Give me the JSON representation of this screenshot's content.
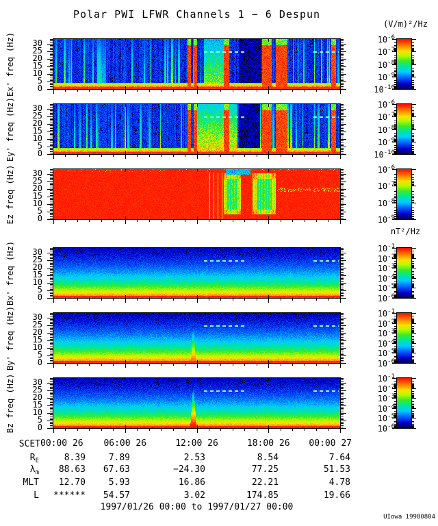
{
  "title": "Polar PWI LFWR Channels 1 − 6 Despun",
  "credit": "UIowa 19980804",
  "footer": "1997/01/26 00:00 to 1997/01/27 00:00",
  "units": {
    "electric": "(V/m)²/Hz",
    "magnetic": "nT²/Hz"
  },
  "colorbar_base": "10",
  "colors": {
    "background": "#ffffff",
    "frame": "#000000",
    "interference_line": "#80ffe1",
    "spectral_max": "#ff0f00",
    "spectral_min": "#000058"
  },
  "x_axis": {
    "label_prefix": "SCET",
    "tick_labels": [
      "00:00 26",
      "06:00 26",
      "12:00 26",
      "18:00 26",
      "00:00 27"
    ],
    "tick_hours": [
      0,
      6,
      12,
      18,
      24
    ]
  },
  "y_axis": {
    "ticks": [
      0,
      5,
      10,
      15,
      20,
      25,
      30
    ],
    "max": 33
  },
  "panels": [
    {
      "name": "ex",
      "ylabel": "Ex' freq (Hz)",
      "kind": "e",
      "seed": 11,
      "red_bands": [
        [
          0.466,
          0.478
        ],
        [
          0.488,
          0.5
        ],
        [
          0.594,
          0.612
        ],
        [
          0.726,
          0.76
        ],
        [
          0.775,
          0.815
        ],
        [
          0.968,
          0.985
        ]
      ],
      "dark_bands": [
        [
          0.645,
          0.724
        ]
      ],
      "hot_bands": [
        [
          0.525,
          0.592,
          0.35
        ]
      ],
      "dashes": [
        [
          0.525,
          0.665
        ],
        [
          0.908,
          0.995
        ]
      ],
      "colorbar": {
        "exponents": [
          -6,
          -7,
          -8,
          -9,
          -10
        ]
      }
    },
    {
      "name": "ey",
      "ylabel": "Ey' freq (Hz)",
      "kind": "e",
      "seed": 23,
      "red_bands": [
        [
          0.466,
          0.478
        ],
        [
          0.488,
          0.5
        ],
        [
          0.594,
          0.612
        ],
        [
          0.726,
          0.76
        ],
        [
          0.775,
          0.815
        ],
        [
          0.968,
          0.985
        ]
      ],
      "dark_bands": [
        [
          0.645,
          0.72
        ]
      ],
      "hot_bands": [
        [
          0.5,
          0.64,
          0.5
        ]
      ],
      "dashes": [
        [
          0.525,
          0.665
        ],
        [
          0.908,
          0.995
        ]
      ],
      "colorbar": {
        "exponents": [
          -6,
          -7,
          -8,
          -9,
          -10
        ]
      }
    },
    {
      "name": "ez",
      "ylabel": "Ez freq (Hz)",
      "kind": "ez",
      "seed": 37,
      "green_blobs": [
        [
          0.592,
          0.652
        ],
        [
          0.694,
          0.775
        ]
      ],
      "top_cool": [
        0.6,
        0.685
      ],
      "speck_line": {
        "f": 19.5,
        "x0": 0.78,
        "x1": 1.0
      },
      "dashes": [],
      "colorbar": {
        "exponents": [
          -6,
          -7,
          -8,
          -9
        ]
      }
    },
    {
      "name": "bx",
      "ylabel": "Bx' freq (Hz)",
      "kind": "b",
      "seed": 51,
      "spike": {
        "x": 0.487,
        "w": 2.5,
        "fmax": 16,
        "amp": 0.55
      },
      "dashes": [
        [
          0.525,
          0.665
        ],
        [
          0.908,
          0.995
        ]
      ],
      "colorbar": {
        "exponents": [
          -1,
          -2,
          -3,
          -4,
          -5,
          -6
        ]
      }
    },
    {
      "name": "by",
      "ylabel": "By' freq (Hz)",
      "kind": "b",
      "seed": 67,
      "spike": {
        "x": 0.487,
        "w": 3,
        "fmax": 24,
        "amp": 0.8
      },
      "dashes": [
        [
          0.525,
          0.665
        ],
        [
          0.908,
          0.995
        ]
      ],
      "colorbar": {
        "exponents": [
          -1,
          -2,
          -3,
          -4,
          -5,
          -6
        ]
      }
    },
    {
      "name": "bz",
      "ylabel": "Bz freq (Hz)",
      "kind": "b",
      "seed": 83,
      "spike": {
        "x": 0.487,
        "w": 4,
        "fmax": 27,
        "amp": 0.9
      },
      "dashes": [
        [
          0.525,
          0.665
        ],
        [
          0.908,
          0.995
        ]
      ],
      "colorbar": {
        "exponents": [
          -1,
          -2,
          -3,
          -4,
          -5,
          -6
        ]
      }
    }
  ],
  "ephemeris": {
    "rows": [
      {
        "label": "R",
        "sub": "E",
        "values": [
          "8.39",
          "7.89",
          "2.53",
          "8.54",
          "7.64"
        ]
      },
      {
        "label": "λ",
        "sub": "m",
        "values": [
          "88.63",
          "67.63",
          "−24.30",
          "77.25",
          "51.53"
        ]
      },
      {
        "label": "MLT",
        "sub": "",
        "values": [
          "12.70",
          "5.93",
          "16.86",
          "22.21",
          "4.78"
        ]
      },
      {
        "label": "L",
        "sub": "",
        "values": [
          "******",
          "54.57",
          "3.02",
          "174.85",
          "19.66"
        ]
      }
    ]
  },
  "chart_data": [
    {
      "type": "heatmap",
      "name": "Ex'",
      "ylabel": "Ex' freq (Hz)",
      "ylim": [
        0,
        33
      ],
      "yticks": [
        0,
        5,
        10,
        15,
        20,
        25,
        30
      ],
      "xticks": [
        "00:00 26",
        "06:00 26",
        "12:00 26",
        "18:00 26",
        "00:00 27"
      ],
      "x_range": "1997/01/26 00:00 to 1997/01/27 00:00",
      "colorbar": {
        "unit": "(V/m)²/Hz",
        "scale": "log",
        "min": 1e-10,
        "max": 1e-06
      },
      "summary": "Bursty broadband electric noise over dark-blue background; intense red columns ~11:00-14:00 and 17:00-19:00, quiet dark band ~15:30-17:00, dashed interference line at 25 Hz, red band below ~2 Hz."
    },
    {
      "type": "heatmap",
      "name": "Ey'",
      "ylabel": "Ey' freq (Hz)",
      "ylim": [
        0,
        33
      ],
      "yticks": [
        0,
        5,
        10,
        15,
        20,
        25,
        30
      ],
      "xticks": [
        "00:00 26",
        "06:00 26",
        "12:00 26",
        "18:00 26",
        "00:00 27"
      ],
      "x_range": "1997/01/26 00:00 to 1997/01/27 00:00",
      "colorbar": {
        "unit": "(V/m)²/Hz",
        "scale": "log",
        "min": 1e-10,
        "max": 1e-06
      },
      "summary": "Like Ex' but with stronger yellow/orange enhancement ~12:00-15:00; dashed interference line at 25 Hz."
    },
    {
      "type": "heatmap",
      "name": "Ez",
      "ylabel": "Ez freq (Hz)",
      "ylim": [
        0,
        33
      ],
      "yticks": [
        0,
        5,
        10,
        15,
        20,
        25,
        30
      ],
      "xticks": [
        "00:00 26",
        "06:00 26",
        "12:00 26",
        "18:00 26",
        "00:00 27"
      ],
      "x_range": "1997/01/26 00:00 to 1997/01/27 00:00",
      "colorbar": {
        "unit": "(V/m)²/Hz",
        "scale": "log",
        "min": 1e-09,
        "max": 1e-06
      },
      "summary": "Saturated red across nearly the full day; green/yellow striped depressions near 14:00-15:30 and 16:30-18:30, cool patch at top edge, faint speckle line near 20 Hz after 19:00."
    },
    {
      "type": "heatmap",
      "name": "Bx'",
      "ylabel": "Bx' freq (Hz)",
      "ylim": [
        0,
        33
      ],
      "yticks": [
        0,
        5,
        10,
        15,
        20,
        25,
        30
      ],
      "xticks": [
        "00:00 26",
        "06:00 26",
        "12:00 26",
        "18:00 26",
        "00:00 27"
      ],
      "x_range": "1997/01/26 00:00 to 1997/01/27 00:00",
      "colorbar": {
        "unit": "nT²/Hz",
        "scale": "log",
        "min": 1e-06,
        "max": 0.1
      },
      "summary": "Smooth falling magnetic spectrum: red below ~3 Hz grading to dark blue above ~20 Hz; weak enhancement near 11:40; dashed interference line at 25 Hz."
    },
    {
      "type": "heatmap",
      "name": "By'",
      "ylabel": "By' freq (Hz)",
      "ylim": [
        0,
        33
      ],
      "yticks": [
        0,
        5,
        10,
        15,
        20,
        25,
        30
      ],
      "xticks": [
        "00:00 26",
        "06:00 26",
        "12:00 26",
        "18:00 26",
        "00:00 27"
      ],
      "x_range": "1997/01/26 00:00 to 1997/01/27 00:00",
      "colorbar": {
        "unit": "nT²/Hz",
        "scale": "log",
        "min": 1e-06,
        "max": 0.1
      },
      "summary": "Same banded falloff with a narrow spike to ~24 Hz near 11:40; dashed interference line at 25 Hz."
    },
    {
      "type": "heatmap",
      "name": "Bz",
      "ylabel": "Bz freq (Hz)",
      "ylim": [
        0,
        33
      ],
      "yticks": [
        0,
        5,
        10,
        15,
        20,
        25,
        30
      ],
      "xticks": [
        "00:00 26",
        "06:00 26",
        "12:00 26",
        "18:00 26",
        "00:00 27"
      ],
      "x_range": "1997/01/26 00:00 to 1997/01/27 00:00",
      "colorbar": {
        "unit": "nT²/Hz",
        "scale": "log",
        "min": 1e-06,
        "max": 0.1
      },
      "summary": "Same banded falloff with the strongest flame-like spike to ~27 Hz near 11:40; dashed interference line at 25 Hz."
    },
    {
      "type": "table",
      "name": "ephemeris",
      "columns": [
        "00:00 26",
        "06:00 26",
        "12:00 26",
        "18:00 26",
        "00:00 27"
      ],
      "row_labels": [
        "RE",
        "λm",
        "MLT",
        "L"
      ],
      "rows": [
        [
          8.39,
          7.89,
          2.53,
          8.54,
          7.64
        ],
        [
          88.63,
          67.63,
          -24.3,
          77.25,
          51.53
        ],
        [
          12.7,
          5.93,
          16.86,
          22.21,
          4.78
        ],
        [
          "******",
          54.57,
          3.02,
          174.85,
          19.66
        ]
      ]
    }
  ]
}
